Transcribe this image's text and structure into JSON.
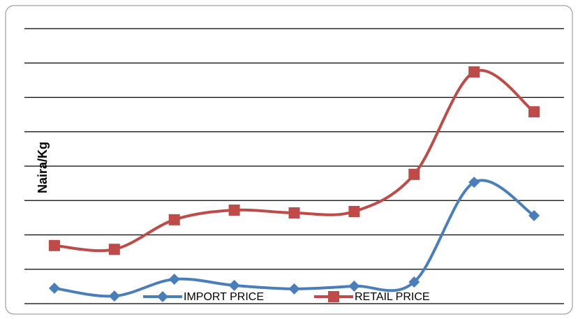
{
  "chart_data": {
    "type": "line",
    "y_label": "Naira/Kg",
    "categories": [
      null,
      null,
      null,
      null,
      null,
      null,
      null,
      null,
      null
    ],
    "series": [
      {
        "name": "IMPORT PRICE",
        "color": "#4a7ebb",
        "marker": "diamond",
        "values": [
          0.45,
          0.22,
          0.71,
          0.53,
          0.43,
          0.51,
          0.63,
          3.53,
          2.56
        ]
      },
      {
        "name": "RETAIL PRICE",
        "color": "#be4b48",
        "marker": "square",
        "values": [
          1.69,
          1.58,
          2.44,
          2.72,
          2.64,
          2.68,
          3.76,
          6.74,
          5.58
        ]
      }
    ],
    "ylim": [
      0,
      8
    ],
    "yticks": [
      0,
      1,
      2,
      3,
      4,
      5,
      6,
      7,
      8
    ],
    "grid": true,
    "smooth": true,
    "legend": "bottom"
  }
}
